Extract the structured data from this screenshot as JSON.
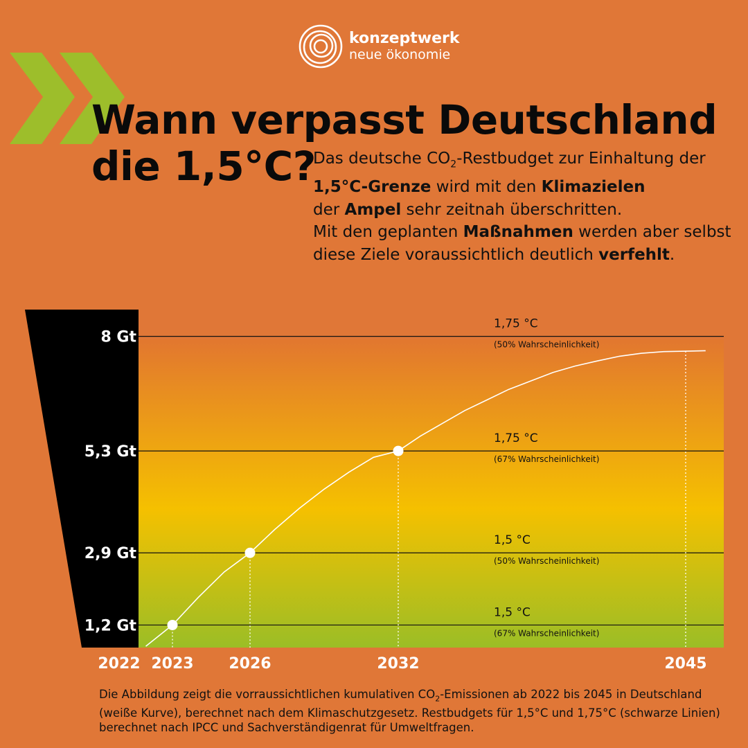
{
  "brand": {
    "name": "konzeptwerk",
    "sub": "neue ökonomie"
  },
  "title": {
    "line1": "Wann verpasst Deutschland",
    "line2": "die 1,5°C?"
  },
  "intro": {
    "p1_a": "Das deutsche CO",
    "p1_sub": "2",
    "p1_b": "-Restbudget zur Einhaltung der ",
    "p1_bold1": "1,5°C-Grenze",
    "p1_c": " wird mit den ",
    "p1_bold2": "Klimazielen",
    "p1_d": " der ",
    "p1_bold3": "Ampel",
    "p1_e": " sehr zeitnah überschritten.",
    "p2_a": "Mit den geplanten ",
    "p2_bold1": "Maßnahmen",
    "p2_b": " werden aber selbst diese Ziele voraussichtlich deutlich ",
    "p2_bold2": "verfehlt",
    "p2_c": "."
  },
  "chart_data": {
    "type": "line",
    "x_unit": "Jahr",
    "y_unit": "Gt",
    "ylim": [
      0,
      8.55
    ],
    "xlim": [
      2022,
      2047
    ],
    "y_ticks": [
      {
        "value": 8,
        "label": "8 Gt"
      },
      {
        "value": 5.3,
        "label": "5,3 Gt"
      },
      {
        "value": 2.9,
        "label": "2,9 Gt"
      },
      {
        "value": 1.2,
        "label": "1,2 Gt"
      }
    ],
    "x_ticks": [
      {
        "value": 2022,
        "label": "2022"
      },
      {
        "value": 2023,
        "label": "2023"
      },
      {
        "value": 2026,
        "label": "2026"
      },
      {
        "value": 2032,
        "label": "2032"
      },
      {
        "value": 2045,
        "label": "2045"
      }
    ],
    "budget_lines": [
      {
        "value": 8,
        "label": "1,75 °C",
        "sub": "(50% Wahrscheinlichkeit)"
      },
      {
        "value": 5.3,
        "label": "1,75 °C",
        "sub": "(67% Wahrscheinlichkeit)"
      },
      {
        "value": 2.9,
        "label": "1,5 °C",
        "sub": "(50% Wahrscheinlichkeit)"
      },
      {
        "value": 1.2,
        "label": "1,5 °C",
        "sub": "(67% Wahrscheinlichkeit)"
      }
    ],
    "series": [
      {
        "x": [
          2022.5,
          2023,
          2024,
          2025,
          2026,
          2027,
          2028,
          2029,
          2030,
          2031,
          2032,
          2033,
          2034,
          2035,
          2036,
          2037,
          2038,
          2039,
          2040,
          2041,
          2042,
          2043,
          2044,
          2045,
          2045.9
        ],
        "y": [
          0.7,
          1.2,
          1.85,
          2.45,
          2.9,
          3.45,
          3.95,
          4.4,
          4.8,
          5.15,
          5.3,
          5.65,
          5.95,
          6.25,
          6.5,
          6.75,
          6.95,
          7.15,
          7.3,
          7.42,
          7.53,
          7.6,
          7.64,
          7.65,
          7.66
        ]
      }
    ],
    "markers": [
      {
        "x": 2023,
        "y": 1.2
      },
      {
        "x": 2026,
        "y": 2.9
      },
      {
        "x": 2032,
        "y": 5.3
      },
      {
        "x": 2045,
        "y": 7.65
      }
    ]
  },
  "caption": {
    "a": "Die Abbildung zeigt die vorraussichtlichen kumulativen CO",
    "sub": "2",
    "b": "-Emissionen ab 2022 bis 2045 in Deutschland (weiße Kurve), berechnet nach dem Klimaschutzgesetz. Restbudgets für 1,5°C und 1,75°C (schwarze Linien) berechnet nach IPCC und Sachverständigenrat für Umweltfragen."
  },
  "colors": {
    "background": "#E07737",
    "accent_green": "#9DBE2B",
    "gradient_top": "#E2772F",
    "gradient_mid": "#F5C000",
    "gradient_bottom": "#9BBE26",
    "curve": "#FFFFFF",
    "budget_line": "#111111"
  }
}
